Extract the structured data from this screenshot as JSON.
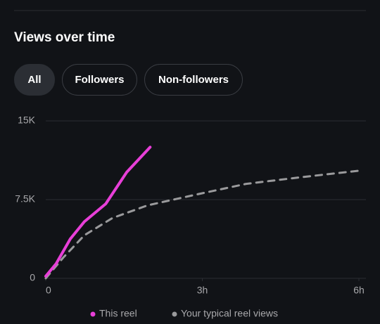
{
  "header": {
    "title": "Views over time"
  },
  "tabs": {
    "items": [
      "All",
      "Followers",
      "Non-followers"
    ],
    "selected": 0
  },
  "chart_data": {
    "type": "line",
    "xlim": [
      0,
      6
    ],
    "xticks": [
      0,
      {
        "value": 3,
        "label": "3h"
      },
      {
        "value": 6,
        "label": "6h"
      }
    ],
    "ylim": [
      0,
      15000
    ],
    "yticks": [
      0,
      {
        "value": 7500,
        "label": "7.5K"
      },
      {
        "value": 15000,
        "label": "15K"
      }
    ],
    "grid": true,
    "series": [
      {
        "name": "This reel",
        "color": "#e83fd8",
        "dashed": false,
        "x": [
          0,
          0.2,
          0.47,
          0.74,
          1.15,
          1.55,
          2.0
        ],
        "values": [
          200,
          1400,
          3750,
          5400,
          7100,
          10100,
          12500
        ]
      },
      {
        "name": "Your typical reel views",
        "color": "#9a9a9c",
        "dashed": true,
        "x": [
          0,
          0.34,
          0.74,
          1.28,
          1.95,
          2.9,
          3.84,
          4.92,
          6
        ],
        "values": [
          0,
          2000,
          4100,
          5750,
          6950,
          8000,
          9000,
          9650,
          10250
        ]
      }
    ]
  }
}
